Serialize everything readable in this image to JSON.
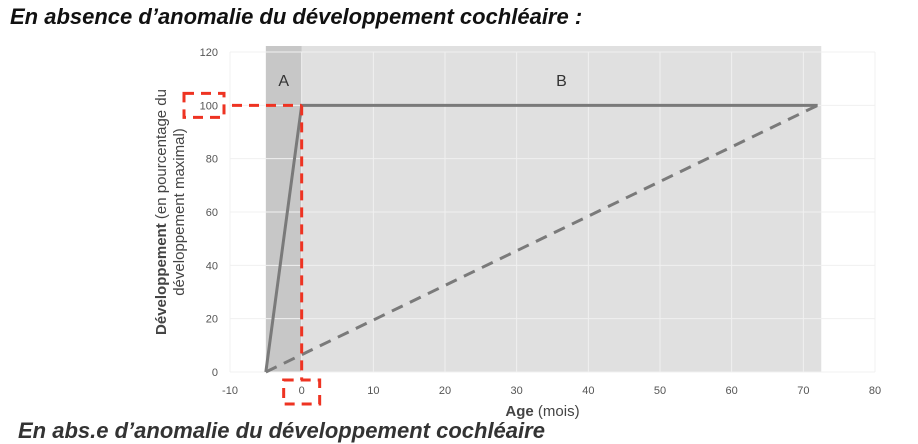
{
  "page": {
    "title": "En absence d’anomalie du développement cochléaire :",
    "cut_line": "En abs.e d’anomalie du développement cochléaire"
  },
  "chart_data": {
    "type": "line",
    "title": "",
    "xlabel_bold": "Age",
    "xlabel_rest": " (mois)",
    "ylabel_line1_bold": "Développement",
    "ylabel_line1_rest": " (en pourcentage du",
    "ylabel_line2": "développement maximal)",
    "xlim": [
      -10,
      80
    ],
    "ylim": [
      0,
      120
    ],
    "x_ticks": [
      -10,
      0,
      10,
      20,
      30,
      40,
      50,
      60,
      70,
      80
    ],
    "y_ticks": [
      0,
      20,
      40,
      60,
      80,
      100,
      120
    ],
    "grid": true,
    "regions": [
      {
        "label": "A",
        "x": [
          -5,
          0
        ],
        "color": "#c7c7c7"
      },
      {
        "label": "B",
        "x": [
          0,
          72.5
        ],
        "color": "#e0e0e0"
      }
    ],
    "series": [
      {
        "style": "solid",
        "color": "#7a7a7a",
        "points": [
          [
            -5,
            0
          ],
          [
            0,
            100
          ],
          [
            72,
            100
          ]
        ]
      },
      {
        "style": "dashed",
        "color": "#7a7a7a",
        "points": [
          [
            -5,
            0
          ],
          [
            72,
            100
          ]
        ]
      }
    ],
    "highlights": [
      {
        "style": "dashed",
        "color": "#ee3322",
        "target": "y",
        "value": 100
      },
      {
        "style": "dashed",
        "color": "#ee3322",
        "target": "x",
        "value": 0
      }
    ]
  }
}
